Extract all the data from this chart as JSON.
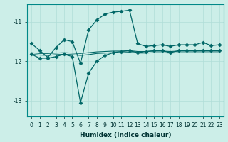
{
  "xlabel": "Humidex (Indice chaleur)",
  "ylabel": "",
  "bg_color": "#cceee8",
  "line_color": "#006666",
  "grid_color": "#b0ddd8",
  "xlim": [
    -0.5,
    23.5
  ],
  "ylim": [
    -13.4,
    -10.55
  ],
  "yticks": [
    -13,
    -12,
    -11
  ],
  "xticks": [
    0,
    1,
    2,
    3,
    4,
    5,
    6,
    7,
    8,
    9,
    10,
    11,
    12,
    13,
    14,
    15,
    16,
    17,
    18,
    19,
    20,
    21,
    22,
    23
  ],
  "lines": [
    {
      "x": [
        0,
        1,
        2,
        3,
        4,
        5,
        6,
        7,
        8,
        9,
        10,
        11,
        12,
        13,
        14,
        15,
        16,
        17,
        18,
        19,
        20,
        21,
        22,
        23
      ],
      "y": [
        -11.55,
        -11.72,
        -11.9,
        -11.65,
        -11.45,
        -11.5,
        -12.05,
        -11.2,
        -10.95,
        -10.8,
        -10.75,
        -10.73,
        -10.7,
        -11.55,
        -11.62,
        -11.6,
        -11.58,
        -11.62,
        -11.58,
        -11.58,
        -11.58,
        -11.52,
        -11.6,
        -11.58
      ],
      "marker": "D",
      "markersize": 2.5,
      "linewidth": 0.9
    },
    {
      "x": [
        0,
        1,
        2,
        3,
        4,
        5,
        6,
        7,
        8,
        9,
        10,
        11,
        12,
        13,
        14,
        15,
        16,
        17,
        18,
        19,
        20,
        21,
        22,
        23
      ],
      "y": [
        -11.82,
        -11.92,
        -11.92,
        -11.88,
        -11.82,
        -11.88,
        -13.05,
        -12.3,
        -12.0,
        -11.85,
        -11.78,
        -11.75,
        -11.73,
        -11.78,
        -11.75,
        -11.73,
        -11.73,
        -11.78,
        -11.73,
        -11.73,
        -11.73,
        -11.73,
        -11.73,
        -11.73
      ],
      "marker": "D",
      "markersize": 2.5,
      "linewidth": 0.9
    },
    {
      "x": [
        0,
        1,
        2,
        3,
        4,
        5,
        6,
        7,
        8,
        9,
        10,
        11,
        12,
        13,
        14,
        15,
        16,
        17,
        18,
        19,
        20,
        21,
        22,
        23
      ],
      "y": [
        -11.78,
        -11.8,
        -11.8,
        -11.79,
        -11.78,
        -11.79,
        -11.8,
        -11.78,
        -11.76,
        -11.75,
        -11.74,
        -11.74,
        -11.73,
        -11.75,
        -11.75,
        -11.74,
        -11.74,
        -11.75,
        -11.74,
        -11.74,
        -11.74,
        -11.74,
        -11.74,
        -11.74
      ],
      "marker": null,
      "markersize": 0,
      "linewidth": 0.8
    },
    {
      "x": [
        0,
        1,
        2,
        3,
        4,
        5,
        6,
        7,
        8,
        9,
        10,
        11,
        12,
        13,
        14,
        15,
        16,
        17,
        18,
        19,
        20,
        21,
        22,
        23
      ],
      "y": [
        -11.82,
        -11.84,
        -11.85,
        -11.83,
        -11.82,
        -11.83,
        -11.85,
        -11.83,
        -11.8,
        -11.79,
        -11.78,
        -11.78,
        -11.77,
        -11.79,
        -11.79,
        -11.78,
        -11.78,
        -11.79,
        -11.78,
        -11.78,
        -11.78,
        -11.78,
        -11.78,
        -11.78
      ],
      "marker": null,
      "markersize": 0,
      "linewidth": 0.8
    }
  ]
}
